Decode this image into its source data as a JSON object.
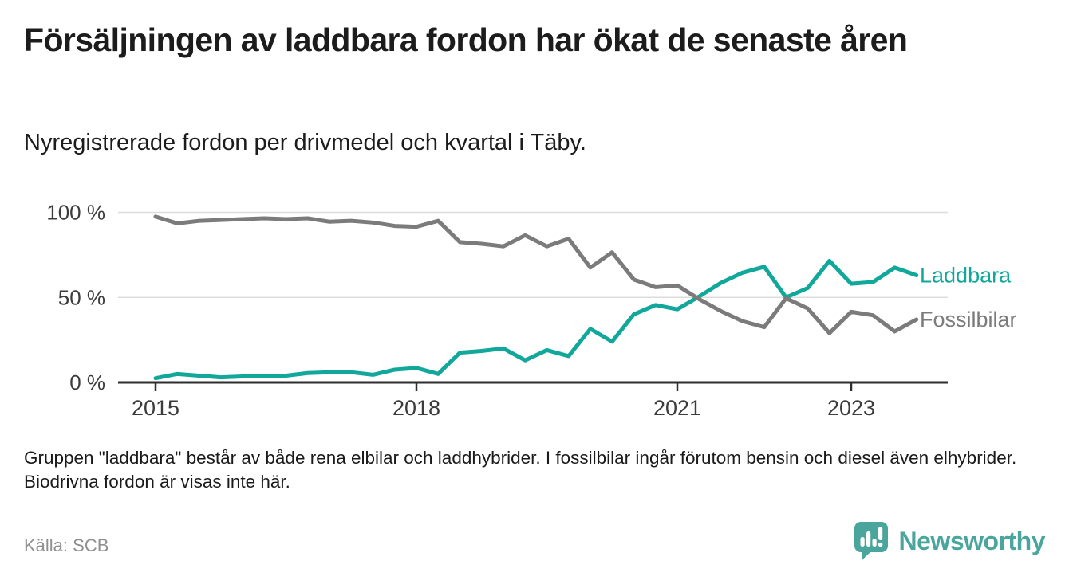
{
  "page": {
    "title": "Försäljningen av laddbara fordon har ökat de senaste åren",
    "subtitle": "Nyregistrerade fordon per drivmedel och kvartal i Täby.",
    "footnote": "Gruppen \"laddbara\" består av både rena elbilar och laddhybrider. I fossilbilar ingår förutom bensin och diesel även elhybrider. Biodrivna fordon är visas inte här.",
    "source": "Källa: SCB",
    "brand": "Newsworthy"
  },
  "colors": {
    "laddbara": "#11a89b",
    "fossilbilar": "#7b7b7b",
    "gridline": "#dcdcdc",
    "axis": "#2e2e2e",
    "axis_label": "#3c3c3c",
    "title_text": "#1c1c1c",
    "source_text": "#8f8f8f",
    "logo_teal": "#4aa69c"
  },
  "chart_data": {
    "type": "line",
    "title": "Försäljningen av laddbara fordon har ökat de senaste åren",
    "subtitle": "Nyregistrerade fordon per drivmedel och kvartal i Täby.",
    "x_unit": "quarter",
    "categories": [
      "2015K1",
      "2015K2",
      "2015K3",
      "2015K4",
      "2016K1",
      "2016K2",
      "2016K3",
      "2016K4",
      "2017K1",
      "2017K2",
      "2017K3",
      "2017K4",
      "2018K1",
      "2018K2",
      "2018K3",
      "2018K4",
      "2019K1",
      "2019K2",
      "2019K3",
      "2019K4",
      "2020K1",
      "2020K2",
      "2020K3",
      "2020K4",
      "2021K1",
      "2021K2",
      "2021K3",
      "2021K4",
      "2022K1",
      "2022K2",
      "2022K3",
      "2022K4",
      "2023K1",
      "2023K2",
      "2023K3",
      "2023K4"
    ],
    "series": [
      {
        "name": "Laddbara",
        "color": "#11a89b",
        "values": [
          2.5,
          5,
          4,
          3,
          3.5,
          3.5,
          4,
          5.5,
          6,
          6,
          4.5,
          7.5,
          8.5,
          5,
          17.5,
          18.5,
          20,
          13,
          19,
          15.5,
          31.5,
          24,
          40,
          45.5,
          43,
          50.5,
          58.5,
          64.5,
          68,
          50,
          55.5,
          71.5,
          58,
          59,
          67.5,
          63
        ]
      },
      {
        "name": "Fossilbilar",
        "color": "#7b7b7b",
        "values": [
          97.5,
          93.5,
          95,
          95.5,
          96,
          96.5,
          96,
          96.5,
          94.5,
          95,
          94,
          92,
          91.5,
          95,
          82.5,
          81.5,
          80,
          86.5,
          80,
          84.5,
          67.5,
          76.5,
          60.5,
          56,
          57,
          49,
          42,
          36,
          32.5,
          49.5,
          43.5,
          29,
          41.5,
          39.5,
          30,
          37
        ]
      }
    ],
    "y_ticks": [
      {
        "value": 100,
        "label": "100 %"
      },
      {
        "value": 50,
        "label": "50 %"
      },
      {
        "value": 0,
        "label": "0 %"
      }
    ],
    "x_ticks": [
      {
        "label": "2015",
        "quarter_index": 0
      },
      {
        "label": "2018",
        "quarter_index": 12
      },
      {
        "label": "2021",
        "quarter_index": 24
      },
      {
        "label": "2023",
        "quarter_index": 32
      }
    ],
    "ylim": [
      0,
      100
    ],
    "grid": "horizontal",
    "legend_position": "end-of-line-labels"
  }
}
